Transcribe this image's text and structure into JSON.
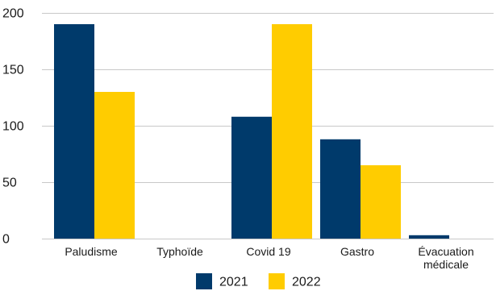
{
  "chart_data": {
    "type": "bar",
    "categories": [
      [
        "Paludisme"
      ],
      [
        "Typhoïde"
      ],
      [
        "Covid 19"
      ],
      [
        "Gastro"
      ],
      [
        "Évacuation",
        "médicale"
      ]
    ],
    "series": [
      {
        "name": "2021",
        "color": "#003a6b",
        "values": [
          190,
          0,
          108,
          88,
          3
        ]
      },
      {
        "name": "2022",
        "color": "#ffcc00",
        "values": [
          130,
          0,
          190,
          65,
          0
        ]
      }
    ],
    "ylim": [
      0,
      200
    ],
    "yticks": [
      0,
      50,
      100,
      150,
      200
    ],
    "grid": true,
    "legend_position": "bottom-center",
    "title": "",
    "xlabel": "",
    "ylabel": ""
  }
}
